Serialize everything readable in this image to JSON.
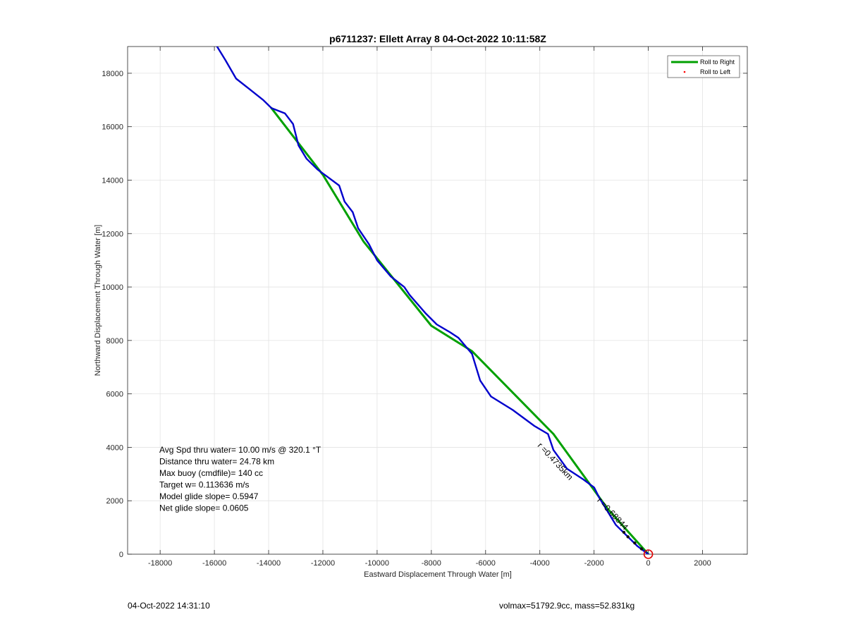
{
  "chart_data": {
    "type": "line",
    "title": "p6711237: Ellett Array 8 04-Oct-2022 10:11:58Z",
    "xlabel": "Eastward Displacement Through Water [m]",
    "ylabel": "Northward Displacement Through Water [m]",
    "xlim": [
      -19200,
      3650
    ],
    "ylim": [
      0,
      19000
    ],
    "xticks": [
      -18000,
      -16000,
      -14000,
      -12000,
      -10000,
      -8000,
      -6000,
      -4000,
      -2000,
      0,
      2000
    ],
    "yticks": [
      0,
      2000,
      4000,
      6000,
      8000,
      10000,
      12000,
      14000,
      16000,
      18000
    ],
    "grid": true,
    "legend": {
      "placement": "top-right",
      "entries": [
        {
          "label": "Roll to Right",
          "color": "#00a000",
          "marker": "line"
        },
        {
          "label": "Roll to Left",
          "color": "#ff0000",
          "marker": "dot"
        }
      ]
    },
    "series": [
      {
        "name": "Roll to Right",
        "color": "#00a000",
        "x": [
          0,
          -1500,
          -3500,
          -6500,
          -8000,
          -10500,
          -12000,
          -13900
        ],
        "y": [
          0,
          1700,
          4500,
          7600,
          8550,
          11700,
          14200,
          16700
        ]
      },
      {
        "color": "#0000cc",
        "x": [
          0,
          -400,
          -1200,
          -1800,
          -2000,
          -2400,
          -3000,
          -3500,
          -3700,
          -4200,
          -5000,
          -5800,
          -6200,
          -6500,
          -7000,
          -7300,
          -7800,
          -8200,
          -8800,
          -9000,
          -9500,
          -10000,
          -10300,
          -10700,
          -10900,
          -11200,
          -11400,
          -11800,
          -12200,
          -12600,
          -12900,
          -13100,
          -13400,
          -13900,
          -14200,
          -14700,
          -15200,
          -15600,
          -15900
        ],
        "y": [
          0,
          300,
          1100,
          2100,
          2500,
          2800,
          3200,
          3900,
          4500,
          4800,
          5400,
          5900,
          6500,
          7500,
          8100,
          8300,
          8600,
          9000,
          9700,
          10000,
          10400,
          11000,
          11600,
          12200,
          12800,
          13200,
          13800,
          14100,
          14400,
          14800,
          15300,
          16100,
          16500,
          16700,
          17000,
          17400,
          17800,
          18500,
          19000
        ]
      }
    ],
    "annotations": {
      "waypoint_label": "r =0.4735km",
      "overlap_label": "r =0.68844",
      "marker_color": "#e00000"
    },
    "stats": [
      "Avg Spd thru water= 10.00 m/s @ 320.1 °T",
      "Distance thru water= 24.78 km",
      "Max buoy (cmdfile)= 140 cc",
      "Target w= 0.113636 m/s",
      "Model glide slope= 0.5947",
      "Net glide slope= 0.0605"
    ]
  },
  "footer": {
    "left": "04-Oct-2022 14:31:10",
    "right": "volmax=51792.9cc, mass=52.831kg"
  }
}
